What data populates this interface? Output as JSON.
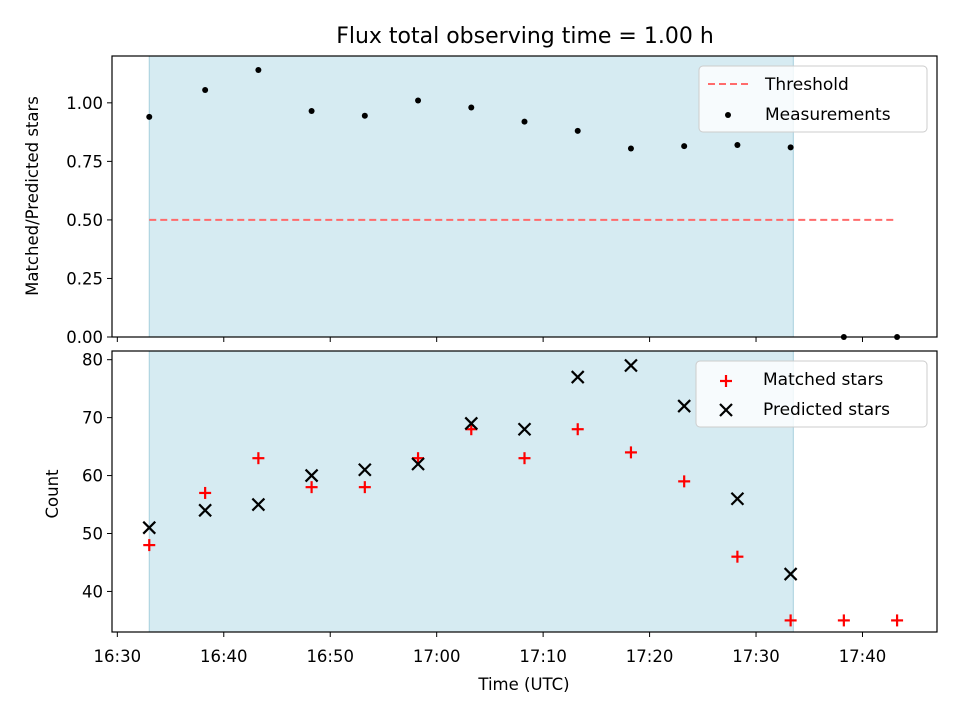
{
  "chart_data": [
    {
      "type": "scatter",
      "title": "Flux total observing time = 1.00 h",
      "ylabel": "Matched/Predicted stars",
      "ylim": [
        0,
        1.2
      ],
      "yticks": [
        "0.00",
        "0.25",
        "0.50",
        "0.75",
        "1.00"
      ],
      "xlim": [
        "16:29:30",
        "17:47:00"
      ],
      "shaded_span": [
        "16:33:00",
        "17:33:30"
      ],
      "colors": {
        "shade": "#add8e6",
        "threshold": "#ff6b6b",
        "points": "#000000"
      },
      "threshold": {
        "name": "Threshold",
        "y": 0.5,
        "x": [
          "16:33:00",
          "17:43:00"
        ]
      },
      "series": [
        {
          "name": "Measurements",
          "points": [
            {
              "x": "16:33:00",
              "y": 0.94
            },
            {
              "x": "16:38:15",
              "y": 1.055
            },
            {
              "x": "16:43:15",
              "y": 1.14
            },
            {
              "x": "16:48:15",
              "y": 0.965
            },
            {
              "x": "16:53:15",
              "y": 0.945
            },
            {
              "x": "16:58:15",
              "y": 1.01
            },
            {
              "x": "17:03:15",
              "y": 0.98
            },
            {
              "x": "17:08:15",
              "y": 0.92
            },
            {
              "x": "17:13:15",
              "y": 0.88
            },
            {
              "x": "17:18:15",
              "y": 0.805
            },
            {
              "x": "17:23:15",
              "y": 0.815
            },
            {
              "x": "17:28:15",
              "y": 0.82
            },
            {
              "x": "17:33:15",
              "y": 0.81
            },
            {
              "x": "17:38:15",
              "y": 0.0
            },
            {
              "x": "17:43:15",
              "y": 0.0
            }
          ]
        }
      ],
      "legend": {
        "position": "upper right",
        "entries": [
          "Threshold",
          "Measurements"
        ]
      }
    },
    {
      "type": "scatter",
      "ylabel": "Count",
      "xlabel": "Time (UTC)",
      "ylim": [
        33,
        81.5
      ],
      "yticks": [
        "40",
        "50",
        "60",
        "70",
        "80"
      ],
      "xticks": [
        "16:30",
        "16:40",
        "16:50",
        "17:00",
        "17:10",
        "17:20",
        "17:30",
        "17:40"
      ],
      "xlim": [
        "16:29:30",
        "17:47:00"
      ],
      "shaded_span": [
        "16:33:00",
        "17:33:30"
      ],
      "colors": {
        "shade": "#add8e6",
        "matched": "#ff0000",
        "predicted": "#000000"
      },
      "series": [
        {
          "name": "Matched stars",
          "marker": "plus",
          "points": [
            {
              "x": "16:33:00",
              "y": 48
            },
            {
              "x": "16:38:15",
              "y": 57
            },
            {
              "x": "16:43:15",
              "y": 63
            },
            {
              "x": "16:48:15",
              "y": 58
            },
            {
              "x": "16:53:15",
              "y": 58
            },
            {
              "x": "16:58:15",
              "y": 63
            },
            {
              "x": "17:03:15",
              "y": 68
            },
            {
              "x": "17:08:15",
              "y": 63
            },
            {
              "x": "17:13:15",
              "y": 68
            },
            {
              "x": "17:18:15",
              "y": 64
            },
            {
              "x": "17:23:15",
              "y": 59
            },
            {
              "x": "17:28:15",
              "y": 46
            },
            {
              "x": "17:33:15",
              "y": 35
            },
            {
              "x": "17:38:15",
              "y": 35
            },
            {
              "x": "17:43:15",
              "y": 35
            }
          ]
        },
        {
          "name": "Predicted stars",
          "marker": "x",
          "points": [
            {
              "x": "16:33:00",
              "y": 51
            },
            {
              "x": "16:38:15",
              "y": 54
            },
            {
              "x": "16:43:15",
              "y": 55
            },
            {
              "x": "16:48:15",
              "y": 60
            },
            {
              "x": "16:53:15",
              "y": 61
            },
            {
              "x": "16:58:15",
              "y": 62
            },
            {
              "x": "17:03:15",
              "y": 69
            },
            {
              "x": "17:08:15",
              "y": 68
            },
            {
              "x": "17:13:15",
              "y": 77
            },
            {
              "x": "17:18:15",
              "y": 79
            },
            {
              "x": "17:23:15",
              "y": 72
            },
            {
              "x": "17:28:15",
              "y": 56
            },
            {
              "x": "17:33:15",
              "y": 43
            }
          ]
        }
      ],
      "legend": {
        "position": "upper right",
        "entries": [
          "Matched stars",
          "Predicted stars"
        ]
      }
    }
  ]
}
